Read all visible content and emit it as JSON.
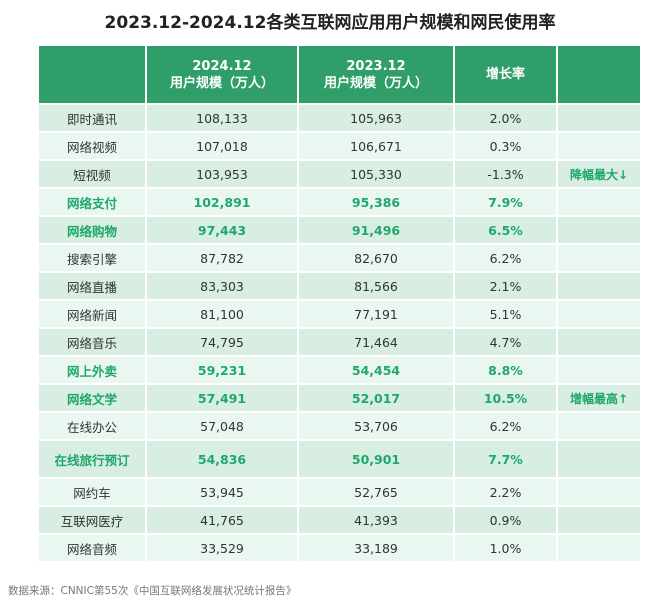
{
  "title": "2023.12-2024.12各类互联网应用用户规模和网民使用率",
  "headers": [
    "",
    "2024.12\n用户规模（万人）",
    "2023.12\n用户规模（万人）",
    "增长率",
    ""
  ],
  "header_lines": [
    [
      "2024.12",
      "用户规模（万人）"
    ],
    [
      "2023.12",
      "用户规模（万人）"
    ]
  ],
  "growth_header": "增长率",
  "rows": [
    {
      "name": "即时通讯",
      "y2024": "108,133",
      "y2023": "105,963",
      "growth": "2.0%",
      "note": ""
    },
    {
      "name": "网络视频",
      "y2024": "107,018",
      "y2023": "106,671",
      "growth": "0.3%",
      "note": ""
    },
    {
      "name": "短视频",
      "y2024": "103,953",
      "y2023": "105,330",
      "growth": "-1.3%",
      "note": "降幅最大↓"
    },
    {
      "name": "网络支付",
      "y2024": "102,891",
      "y2023": "95,386",
      "growth": "7.9%",
      "note": "",
      "highlight": true
    },
    {
      "name": "网络购物",
      "y2024": "97,443",
      "y2023": "91,496",
      "growth": "6.5%",
      "note": "",
      "highlight": true
    },
    {
      "name": "搜索引擎",
      "y2024": "87,782",
      "y2023": "82,670",
      "growth": "6.2%",
      "note": ""
    },
    {
      "name": "网络直播",
      "y2024": "83,303",
      "y2023": "81,566",
      "growth": "2.1%",
      "note": ""
    },
    {
      "name": "网络新闻",
      "y2024": "81,100",
      "y2023": "77,191",
      "growth": "5.1%",
      "note": ""
    },
    {
      "name": "网络音乐",
      "y2024": "74,795",
      "y2023": "71,464",
      "growth": "4.7%",
      "note": ""
    },
    {
      "name": "网上外卖",
      "y2024": "59,231",
      "y2023": "54,454",
      "growth": "8.8%",
      "note": "",
      "highlight": true
    },
    {
      "name": "网络文学",
      "y2024": "57,491",
      "y2023": "52,017",
      "growth": "10.5%",
      "note": "增幅最高↑",
      "highlight": true
    },
    {
      "name": "在线办公",
      "y2024": "57,048",
      "y2023": "53,706",
      "growth": "6.2%",
      "note": ""
    },
    {
      "name": "在线旅行预订",
      "y2024": "54,836",
      "y2023": "50,901",
      "growth": "7.7%",
      "note": "",
      "highlight": true
    },
    {
      "name": "网约车",
      "y2024": "53,945",
      "y2023": "52,765",
      "growth": "2.2%",
      "note": ""
    },
    {
      "name": "互联网医疗",
      "y2024": "41,765",
      "y2023": "41,393",
      "growth": "0.9%",
      "note": ""
    },
    {
      "name": "网络音频",
      "y2024": "33,529",
      "y2023": "33,189",
      "growth": "1.0%",
      "note": ""
    }
  ],
  "source": "数据来源：CNNIC第55次《中国互联网络发展状况统计报告》",
  "colors": {
    "header": "#2f9e68",
    "highlight_text": "#1fa86b",
    "row_odd": "#d8eee2",
    "row_even": "#eaf6f0"
  }
}
